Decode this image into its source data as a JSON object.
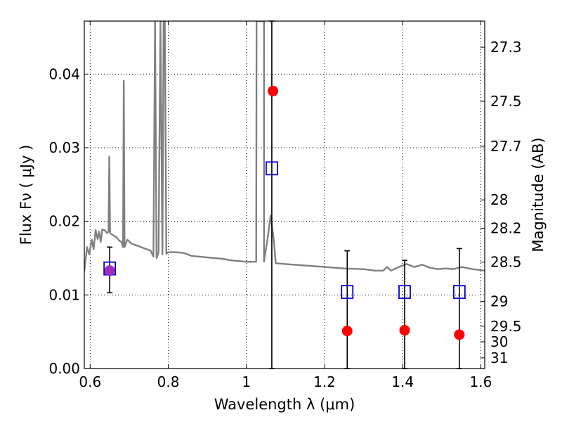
{
  "chart_data": {
    "type": "scatter",
    "title": "",
    "xlabel": "Wavelength  λ (μm)",
    "ylabel": "Flux  Fν ( μJy )",
    "ylabel_right": "Magnitude (AB)",
    "xlim": [
      0.585,
      1.61
    ],
    "ylim": [
      0.0,
      0.0472
    ],
    "grid": true,
    "legend": "none",
    "x_ticks": [
      {
        "value": 0.6,
        "label": "0.6"
      },
      {
        "value": 0.8,
        "label": "0.8"
      },
      {
        "value": 1.0,
        "label": "1"
      },
      {
        "value": 1.2,
        "label": "1.2"
      },
      {
        "value": 1.4,
        "label": "1.4"
      },
      {
        "value": 1.6,
        "label": "1.6"
      }
    ],
    "y_ticks": [
      {
        "value": 0.0,
        "label": "0.00"
      },
      {
        "value": 0.01,
        "label": "0.01"
      },
      {
        "value": 0.02,
        "label": "0.02"
      },
      {
        "value": 0.03,
        "label": "0.03"
      },
      {
        "value": 0.04,
        "label": "0.04"
      }
    ],
    "y_right_ticks": [
      {
        "value": 27.3,
        "label": "27.3"
      },
      {
        "value": 27.5,
        "label": "27.5"
      },
      {
        "value": 27.7,
        "label": "27.7"
      },
      {
        "value": 28,
        "label": "28"
      },
      {
        "value": 28.2,
        "label": "28.2"
      },
      {
        "value": 28.5,
        "label": "28.5"
      },
      {
        "value": 29,
        "label": "29"
      },
      {
        "value": 29.5,
        "label": "29.5"
      },
      {
        "value": 30,
        "label": "30"
      },
      {
        "value": 31,
        "label": "31"
      }
    ],
    "series": [
      {
        "kind": "line",
        "color": "#808080",
        "points": [
          [
            0.585,
            0.0132
          ],
          [
            0.592,
            0.0165
          ],
          [
            0.598,
            0.0155
          ],
          [
            0.604,
            0.0175
          ],
          [
            0.609,
            0.0162
          ],
          [
            0.614,
            0.0188
          ],
          [
            0.619,
            0.0176
          ],
          [
            0.623,
            0.0186
          ],
          [
            0.627,
            0.0172
          ],
          [
            0.631,
            0.0189
          ],
          [
            0.637,
            0.0188
          ],
          [
            0.643,
            0.0184
          ],
          [
            0.647,
            0.0186
          ],
          [
            0.649,
            0.0288
          ],
          [
            0.651,
            0.0184
          ],
          [
            0.656,
            0.0182
          ],
          [
            0.662,
            0.018
          ],
          [
            0.668,
            0.0178
          ],
          [
            0.674,
            0.0174
          ],
          [
            0.68,
            0.0172
          ],
          [
            0.684,
            0.0165
          ],
          [
            0.686,
            0.0391
          ],
          [
            0.688,
            0.0165
          ],
          [
            0.695,
            0.0175
          ],
          [
            0.705,
            0.017
          ],
          [
            0.715,
            0.0168
          ],
          [
            0.725,
            0.0166
          ],
          [
            0.735,
            0.0164
          ],
          [
            0.745,
            0.0162
          ],
          [
            0.755,
            0.016
          ],
          [
            0.762,
            0.0152
          ],
          [
            0.766,
            0.0472
          ],
          [
            0.77,
            0.015
          ],
          [
            0.775,
            0.0158
          ],
          [
            0.78,
            0.0472
          ],
          [
            0.785,
            0.0155
          ],
          [
            0.788,
            0.0472
          ],
          [
            0.791,
            0.0472
          ],
          [
            0.795,
            0.0156
          ],
          [
            0.8,
            0.0158
          ],
          [
            0.82,
            0.0158
          ],
          [
            0.84,
            0.0157
          ],
          [
            0.86,
            0.0153
          ],
          [
            0.88,
            0.0152
          ],
          [
            0.9,
            0.0151
          ],
          [
            0.92,
            0.015
          ],
          [
            0.94,
            0.0149
          ],
          [
            0.96,
            0.0147
          ],
          [
            0.98,
            0.0146
          ],
          [
            1.0,
            0.0145
          ],
          [
            1.025,
            0.0145
          ],
          [
            1.026,
            0.0472
          ],
          [
            1.045,
            0.0472
          ],
          [
            1.045,
            0.0145
          ],
          [
            1.055,
            0.018
          ],
          [
            1.062,
            0.0208
          ],
          [
            1.07,
            0.0175
          ],
          [
            1.075,
            0.0143
          ],
          [
            1.1,
            0.0142
          ],
          [
            1.15,
            0.014
          ],
          [
            1.2,
            0.0138
          ],
          [
            1.25,
            0.0136
          ],
          [
            1.3,
            0.0135
          ],
          [
            1.33,
            0.0133
          ],
          [
            1.35,
            0.0133
          ],
          [
            1.36,
            0.0138
          ],
          [
            1.37,
            0.0133
          ],
          [
            1.39,
            0.0138
          ],
          [
            1.41,
            0.0142
          ],
          [
            1.43,
            0.0138
          ],
          [
            1.45,
            0.0141
          ],
          [
            1.47,
            0.0137
          ],
          [
            1.49,
            0.0135
          ],
          [
            1.51,
            0.0136
          ],
          [
            1.53,
            0.0135
          ],
          [
            1.55,
            0.0138
          ],
          [
            1.58,
            0.0135
          ],
          [
            1.61,
            0.0133
          ]
        ]
      },
      {
        "kind": "points",
        "marker": "circle",
        "color": "#ff0000",
        "points": [
          {
            "x": 0.65,
            "y": 0.0133,
            "err_lo": 0.0103,
            "err_hi": 0.0165
          },
          {
            "x": 1.068,
            "y": 0.0377,
            "err_lo": null,
            "err_hi": null
          },
          {
            "x": 1.258,
            "y": 0.0051,
            "err_lo": null,
            "err_hi": null
          },
          {
            "x": 1.405,
            "y": 0.0052,
            "err_lo": null,
            "err_hi": null
          },
          {
            "x": 1.545,
            "y": 0.0046,
            "err_lo": null,
            "err_hi": null
          }
        ]
      },
      {
        "kind": "points",
        "marker": "square-open",
        "color": "#0000cc",
        "points": [
          {
            "x": 0.65,
            "y": 0.0136,
            "err_lo": null,
            "err_hi": null
          },
          {
            "x": 1.065,
            "y": 0.0272,
            "err_lo": 0.0,
            "err_hi": 0.0472
          },
          {
            "x": 1.258,
            "y": 0.0104,
            "err_lo": 0.0,
            "err_hi": 0.016
          },
          {
            "x": 1.405,
            "y": 0.0104,
            "err_lo": 0.0,
            "err_hi": 0.0147
          },
          {
            "x": 1.545,
            "y": 0.0104,
            "err_lo": 0.0,
            "err_hi": 0.0163
          }
        ]
      }
    ],
    "overlap_marker": {
      "x": 0.65,
      "y": 0.0133,
      "color": "#9a2fd0"
    }
  }
}
